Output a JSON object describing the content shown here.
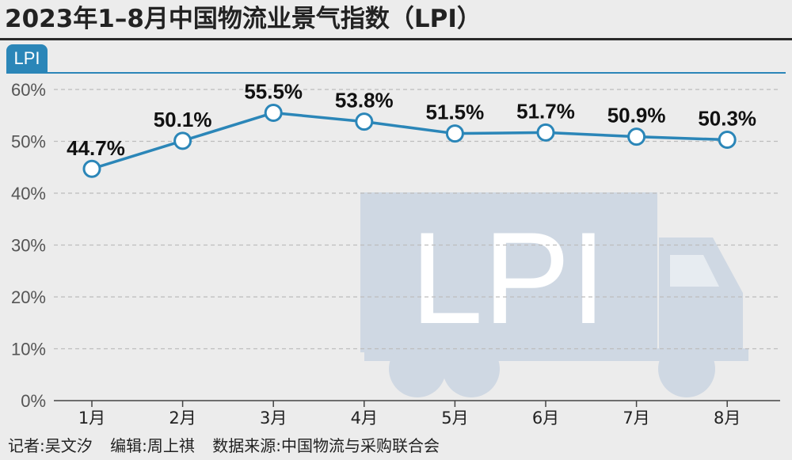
{
  "header": {
    "title": "2023年1–8月中国物流业景气指数（LPI）",
    "legend_badge": "LPI"
  },
  "watermark": {
    "text": "LPI",
    "icon": "truck-icon"
  },
  "chart_data": {
    "type": "line",
    "title": "2023年1–8月中国物流业景气指数（LPI）",
    "categories": [
      "1月",
      "2月",
      "3月",
      "4月",
      "5月",
      "6月",
      "7月",
      "8月"
    ],
    "series": [
      {
        "name": "LPI",
        "values": [
          44.7,
          50.1,
          55.5,
          53.8,
          51.5,
          51.7,
          50.9,
          50.3
        ]
      }
    ],
    "data_labels": [
      "44.7%",
      "50.1%",
      "55.5%",
      "53.8%",
      "51.5%",
      "51.7%",
      "50.9%",
      "50.3%"
    ],
    "y_ticks": [
      0,
      10,
      20,
      30,
      40,
      50,
      60
    ],
    "y_tick_labels": [
      "0%",
      "10%",
      "20%",
      "30%",
      "40%",
      "50%",
      "60%"
    ],
    "ylim": [
      0,
      60
    ],
    "grid": true,
    "colors": {
      "line": "#2b86b8",
      "marker_fill": "#ffffff",
      "grid": "#bdbdbd",
      "watermark": "#cfd8e3"
    }
  },
  "footer": {
    "reporter": "记者:吴文汐",
    "editor": "编辑:周上祺",
    "source": "数据来源:中国物流与采购联合会"
  }
}
